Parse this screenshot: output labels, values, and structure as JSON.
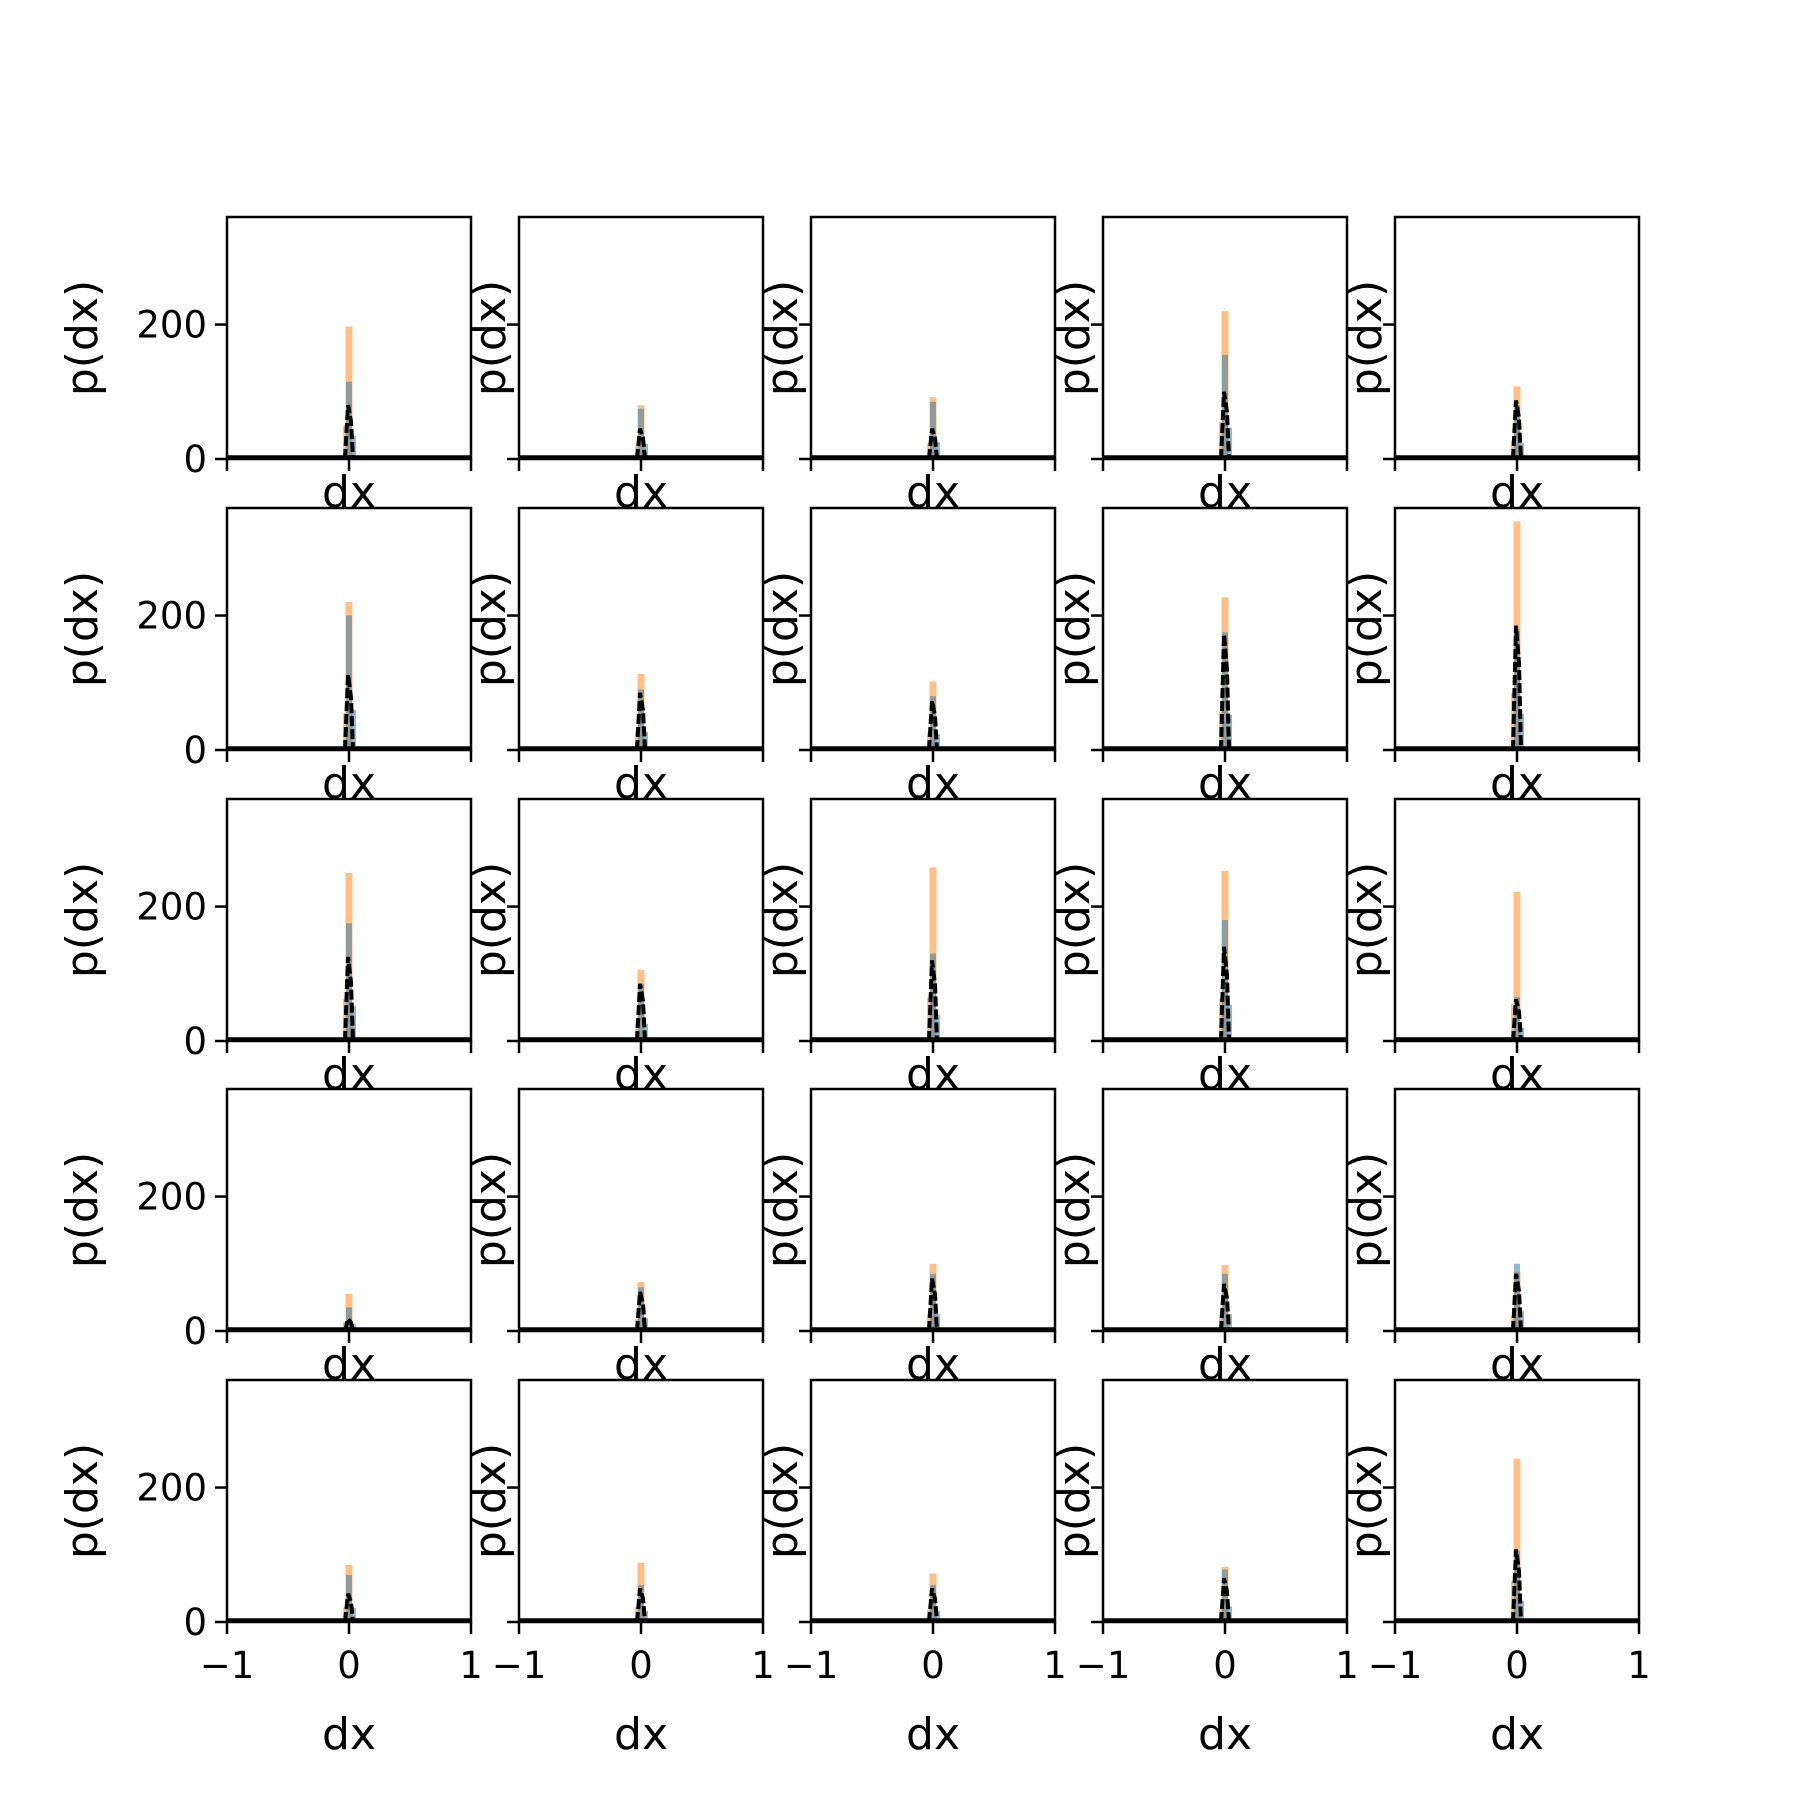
{
  "chart_data": {
    "type": "histogram-grid",
    "rows": 5,
    "cols": 5,
    "xlabel": "dx",
    "ylabel": "p(dx)",
    "xlim": [
      -1,
      1
    ],
    "ylim": [
      0,
      360
    ],
    "xticks": [
      -1,
      0,
      1
    ],
    "xtick_labels": [
      "−1",
      "0",
      "1"
    ],
    "yticks": [
      0,
      200
    ],
    "ytick_labels": [
      "0",
      "200"
    ],
    "colors": {
      "blue_hist": "#1f77b4",
      "orange_hist": "#ff7f0e",
      "dashed_line": "#000000"
    },
    "panels": [
      {
        "row": 1,
        "col": 1,
        "blue_peak": 115,
        "orange_peak": 197,
        "black_peak": 80
      },
      {
        "row": 1,
        "col": 2,
        "blue_peak": 75,
        "orange_peak": 80,
        "black_peak": 45
      },
      {
        "row": 1,
        "col": 3,
        "blue_peak": 85,
        "orange_peak": 92,
        "black_peak": 45
      },
      {
        "row": 1,
        "col": 4,
        "blue_peak": 155,
        "orange_peak": 220,
        "black_peak": 100
      },
      {
        "row": 1,
        "col": 5,
        "blue_peak": 80,
        "orange_peak": 108,
        "black_peak": 87
      },
      {
        "row": 2,
        "col": 1,
        "blue_peak": 200,
        "orange_peak": 220,
        "black_peak": 112
      },
      {
        "row": 2,
        "col": 2,
        "blue_peak": 90,
        "orange_peak": 113,
        "black_peak": 85
      },
      {
        "row": 2,
        "col": 3,
        "blue_peak": 80,
        "orange_peak": 102,
        "black_peak": 73
      },
      {
        "row": 2,
        "col": 4,
        "blue_peak": 175,
        "orange_peak": 227,
        "black_peak": 172
      },
      {
        "row": 2,
        "col": 5,
        "blue_peak": 180,
        "orange_peak": 340,
        "black_peak": 185
      },
      {
        "row": 3,
        "col": 1,
        "blue_peak": 175,
        "orange_peak": 250,
        "black_peak": 125
      },
      {
        "row": 3,
        "col": 2,
        "blue_peak": 85,
        "orange_peak": 106,
        "black_peak": 85
      },
      {
        "row": 3,
        "col": 3,
        "blue_peak": 130,
        "orange_peak": 258,
        "black_peak": 120
      },
      {
        "row": 3,
        "col": 4,
        "blue_peak": 180,
        "orange_peak": 253,
        "black_peak": 140
      },
      {
        "row": 3,
        "col": 5,
        "blue_peak": 65,
        "orange_peak": 222,
        "black_peak": 62
      },
      {
        "row": 4,
        "col": 1,
        "blue_peak": 35,
        "orange_peak": 55,
        "black_peak": 18
      },
      {
        "row": 4,
        "col": 2,
        "blue_peak": 65,
        "orange_peak": 73,
        "black_peak": 58
      },
      {
        "row": 4,
        "col": 3,
        "blue_peak": 85,
        "orange_peak": 100,
        "black_peak": 78
      },
      {
        "row": 4,
        "col": 4,
        "blue_peak": 85,
        "orange_peak": 98,
        "black_peak": 70
      },
      {
        "row": 4,
        "col": 5,
        "blue_peak": 100,
        "orange_peak": 88,
        "black_peak": 85
      },
      {
        "row": 5,
        "col": 1,
        "blue_peak": 70,
        "orange_peak": 85,
        "black_peak": 42
      },
      {
        "row": 5,
        "col": 2,
        "blue_peak": 55,
        "orange_peak": 88,
        "black_peak": 50
      },
      {
        "row": 5,
        "col": 3,
        "blue_peak": 55,
        "orange_peak": 72,
        "black_peak": 50
      },
      {
        "row": 5,
        "col": 4,
        "blue_peak": 78,
        "orange_peak": 82,
        "black_peak": 65
      },
      {
        "row": 5,
        "col": 5,
        "blue_peak": 105,
        "orange_peak": 243,
        "black_peak": 108
      }
    ]
  }
}
